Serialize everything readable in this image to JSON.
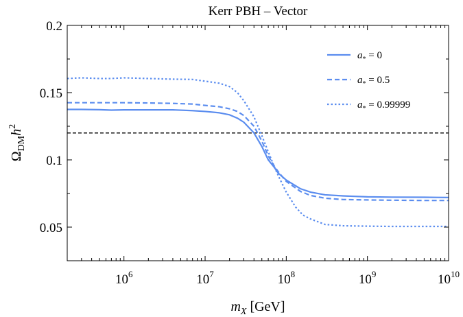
{
  "chart_data": {
    "type": "line",
    "title": "Kerr PBH – Vector",
    "xlabel": "m_X [GeV]",
    "ylabel": "Ω_DM h^2",
    "x_scale": "log",
    "xlim": [
      200000,
      10000000000
    ],
    "ylim": [
      0.025,
      0.2
    ],
    "yticks": [
      0.05,
      0.1,
      0.15,
      0.2
    ],
    "ytick_labels": [
      "0.05",
      "0.1",
      "0.15",
      "0.2"
    ],
    "xticks": [
      1000000,
      10000000,
      100000000,
      1000000000,
      10000000000
    ],
    "xtick_labels": [
      "10^6",
      "10^7",
      "10^8",
      "10^9",
      "10^10"
    ],
    "reference_line": {
      "y": 0.12,
      "style": "dashed",
      "color": "#000000"
    },
    "legend_placement": "top-right",
    "series_color": "#5b8def",
    "series": [
      {
        "name": "a_* = 0",
        "style": "solid",
        "points": [
          [
            200000,
            0.1375
          ],
          [
            300000,
            0.1375
          ],
          [
            500000,
            0.1373
          ],
          [
            700000,
            0.137
          ],
          [
            1000000,
            0.1372
          ],
          [
            2000000,
            0.1372
          ],
          [
            4000000,
            0.1372
          ],
          [
            7000000,
            0.1366
          ],
          [
            10000000,
            0.136
          ],
          [
            15000000,
            0.135
          ],
          [
            20000000,
            0.1335
          ],
          [
            25000000,
            0.131
          ],
          [
            30000000,
            0.128
          ],
          [
            40000000,
            0.12
          ],
          [
            50000000,
            0.11
          ],
          [
            60000000,
            0.1
          ],
          [
            70000000,
            0.095
          ],
          [
            80000000,
            0.09
          ],
          [
            100000000,
            0.085
          ],
          [
            150000000,
            0.0785
          ],
          [
            200000000,
            0.076
          ],
          [
            300000000,
            0.074
          ],
          [
            500000000,
            0.0732
          ],
          [
            1000000000,
            0.0725
          ],
          [
            2000000000,
            0.0723
          ],
          [
            5000000000,
            0.0722
          ],
          [
            10000000000,
            0.072
          ]
        ]
      },
      {
        "name": "a_* = 0.5",
        "style": "dashed",
        "points": [
          [
            200000,
            0.1425
          ],
          [
            300000,
            0.1425
          ],
          [
            500000,
            0.1425
          ],
          [
            700000,
            0.1425
          ],
          [
            1000000,
            0.1425
          ],
          [
            2000000,
            0.1423
          ],
          [
            4000000,
            0.142
          ],
          [
            7000000,
            0.1415
          ],
          [
            10000000,
            0.1405
          ],
          [
            15000000,
            0.1395
          ],
          [
            20000000,
            0.138
          ],
          [
            25000000,
            0.136
          ],
          [
            30000000,
            0.133
          ],
          [
            40000000,
            0.125
          ],
          [
            50000000,
            0.114
          ],
          [
            60000000,
            0.103
          ],
          [
            70000000,
            0.096
          ],
          [
            80000000,
            0.091
          ],
          [
            100000000,
            0.084
          ],
          [
            150000000,
            0.0765
          ],
          [
            200000000,
            0.0735
          ],
          [
            300000000,
            0.0715
          ],
          [
            500000000,
            0.0705
          ],
          [
            1000000000,
            0.0702
          ],
          [
            2000000000,
            0.07
          ],
          [
            5000000000,
            0.0698
          ],
          [
            10000000000,
            0.0698
          ]
        ]
      },
      {
        "name": "a_* = 0.99999",
        "style": "dotted",
        "points": [
          [
            200000,
            0.1605
          ],
          [
            300000,
            0.161
          ],
          [
            500000,
            0.1605
          ],
          [
            700000,
            0.1605
          ],
          [
            1000000,
            0.161
          ],
          [
            2000000,
            0.1605
          ],
          [
            4000000,
            0.16
          ],
          [
            7000000,
            0.1598
          ],
          [
            10000000,
            0.1585
          ],
          [
            15000000,
            0.157
          ],
          [
            20000000,
            0.1545
          ],
          [
            25000000,
            0.15
          ],
          [
            30000000,
            0.144
          ],
          [
            40000000,
            0.132
          ],
          [
            50000000,
            0.118
          ],
          [
            60000000,
            0.106
          ],
          [
            70000000,
            0.096
          ],
          [
            80000000,
            0.088
          ],
          [
            100000000,
            0.076
          ],
          [
            130000000,
            0.065
          ],
          [
            160000000,
            0.059
          ],
          [
            200000000,
            0.056
          ],
          [
            300000000,
            0.052
          ],
          [
            500000000,
            0.051
          ],
          [
            1000000000,
            0.0507
          ],
          [
            2000000000,
            0.0505
          ],
          [
            5000000000,
            0.0505
          ],
          [
            10000000000,
            0.0505
          ]
        ]
      }
    ]
  }
}
